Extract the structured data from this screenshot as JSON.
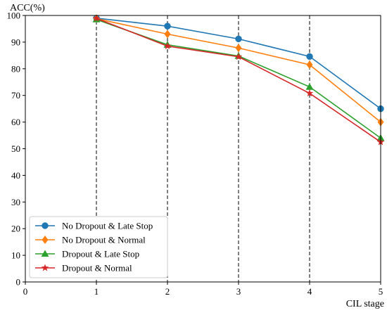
{
  "chart_data": {
    "type": "line",
    "ylabel": "ACC(%)",
    "xlabel": "CIL stage",
    "xlim": [
      0,
      5
    ],
    "ylim": [
      0,
      100
    ],
    "x_ticks": [
      0,
      1,
      2,
      3,
      4,
      5
    ],
    "y_ticks": [
      0,
      10,
      20,
      30,
      40,
      50,
      60,
      70,
      80,
      90,
      100
    ],
    "x": [
      1,
      2,
      3,
      4,
      5
    ],
    "grid": "vertical dashed lines at stages 1-5",
    "legend_position": "lower-left",
    "series": [
      {
        "name": "No Dropout & Late Stop",
        "color": "#1f77b4",
        "marker": "circle",
        "values": [
          99.0,
          96.0,
          91.2,
          84.6,
          65.0
        ]
      },
      {
        "name": "No Dropout & Normal",
        "color": "#ff7f0e",
        "marker": "diamond",
        "values": [
          98.8,
          93.0,
          87.8,
          81.5,
          60.0
        ]
      },
      {
        "name": "Dropout & Late Stop",
        "color": "#2ca02c",
        "marker": "triangle-up",
        "values": [
          98.5,
          89.0,
          84.8,
          73.2,
          54.0
        ]
      },
      {
        "name": "Dropout & Normal",
        "color": "#d62728",
        "marker": "star",
        "values": [
          98.9,
          88.5,
          84.5,
          70.8,
          52.5
        ]
      }
    ]
  }
}
